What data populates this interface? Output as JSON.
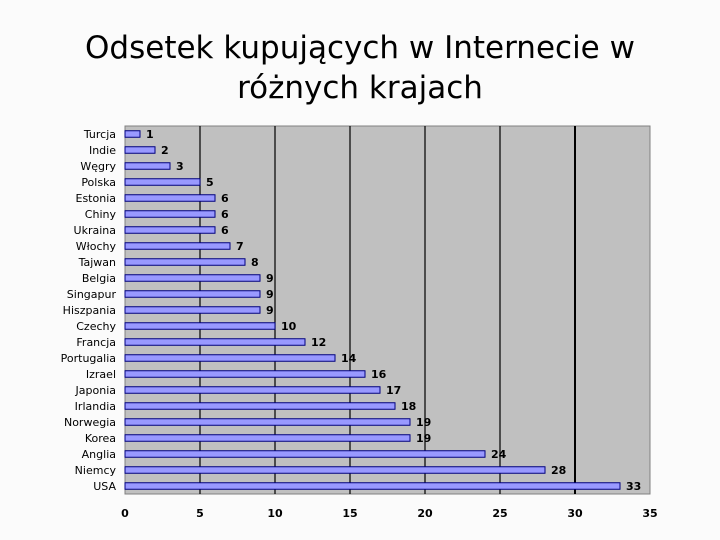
{
  "title": "Odsetek kupujących w Internecie w\nróżnych krajach",
  "colors": {
    "plot_background": "#c0c0c0",
    "bar_fill": "#9999ff",
    "bar_stroke": "#000080",
    "gridline": "#000000"
  },
  "chart_data": {
    "type": "bar",
    "orientation": "horizontal",
    "title": "",
    "xlabel": "",
    "ylabel": "",
    "categories": [
      "Turcja",
      "Indie",
      "Węgry",
      "Polska",
      "Estonia",
      "Chiny",
      "Ukraina",
      "Włochy",
      "Tajwan",
      "Belgia",
      "Singapur",
      "Hiszpania",
      "Czechy",
      "Francja",
      "Portugalia",
      "Izrael",
      "Japonia",
      "Irlandia",
      "Norwegia",
      "Korea",
      "Anglia",
      "Niemcy",
      "USA"
    ],
    "values": [
      1,
      2,
      3,
      5,
      6,
      6,
      6,
      7,
      8,
      9,
      9,
      9,
      10,
      12,
      14,
      16,
      17,
      18,
      19,
      19,
      24,
      28,
      33
    ],
    "xlim": [
      0,
      35
    ],
    "xticks": [
      0,
      5,
      10,
      15,
      20,
      25,
      30,
      35
    ],
    "grid": true,
    "legend": "none"
  }
}
